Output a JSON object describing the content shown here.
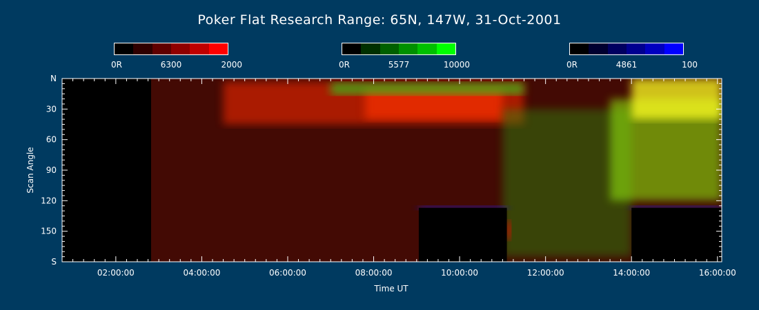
{
  "title": "Poker Flat Research Range: 65N, 147W, 31-Oct-2001",
  "colorbars": [
    {
      "channel": "6300",
      "min_label": "0R",
      "mid_label": "6300",
      "max_label": "2000",
      "colors": [
        "#000000",
        "#300000",
        "#600000",
        "#900000",
        "#c00000",
        "#ff0000"
      ]
    },
    {
      "channel": "5577",
      "min_label": "0R",
      "mid_label": "5577",
      "max_label": "10000",
      "colors": [
        "#000000",
        "#003000",
        "#006000",
        "#009000",
        "#00c000",
        "#00ff00"
      ]
    },
    {
      "channel": "4861",
      "min_label": "0R",
      "mid_label": "4861",
      "max_label": "100",
      "colors": [
        "#000000",
        "#000030",
        "#000060",
        "#000090",
        "#0000c0",
        "#0000ff"
      ]
    }
  ],
  "chart_data": {
    "type": "heatmap",
    "title": "Poker Flat Research Range: 65N, 147W, 31-Oct-2001",
    "xlabel": "Time UT",
    "ylabel": "Scan Angle",
    "x_range_hours": [
      0.75,
      16.1
    ],
    "x_ticks": [
      {
        "value": 2,
        "label": "02:00:00"
      },
      {
        "value": 4,
        "label": "04:00:00"
      },
      {
        "value": 6,
        "label": "06:00:00"
      },
      {
        "value": 8,
        "label": "08:00:00"
      },
      {
        "value": 10,
        "label": "10:00:00"
      },
      {
        "value": 12,
        "label": "12:00:00"
      },
      {
        "value": 14,
        "label": "14:00:00"
      },
      {
        "value": 16,
        "label": "16:00:00"
      }
    ],
    "y_range": [
      0,
      180
    ],
    "y_ticks": [
      {
        "value": 0,
        "label": "N"
      },
      {
        "value": 30,
        "label": "30"
      },
      {
        "value": 60,
        "label": "60"
      },
      {
        "value": 90,
        "label": "90"
      },
      {
        "value": 120,
        "label": "120"
      },
      {
        "value": 150,
        "label": "150"
      },
      {
        "value": 180,
        "label": "S"
      }
    ],
    "no_data_intervals": [
      {
        "t0": 0.75,
        "t1": 2.82,
        "angle0": 0,
        "angle1": 180
      },
      {
        "t0": 9.05,
        "t1": 11.1,
        "angle0": 127,
        "angle1": 180
      },
      {
        "t0": 14.0,
        "t1": 16.1,
        "angle0": 127,
        "angle1": 180
      }
    ],
    "emission_regions": [
      {
        "channel": "6300",
        "color": "#7a1208",
        "t0": 2.82,
        "t1": 16.1,
        "angle0": 0,
        "angle1": 180,
        "opacity": 0.55
      },
      {
        "channel": "6300",
        "color": "#ff2a00",
        "t0": 4.5,
        "t1": 11.5,
        "angle0": 3,
        "angle1": 45,
        "opacity": 0.55
      },
      {
        "channel": "6300",
        "color": "#ff3300",
        "t0": 7.8,
        "t1": 11.0,
        "angle0": 10,
        "angle1": 40,
        "opacity": 0.65
      },
      {
        "channel": "5577",
        "color": "#22dd22",
        "t0": 7.0,
        "t1": 11.5,
        "angle0": 4,
        "angle1": 16,
        "opacity": 0.6
      },
      {
        "channel": "5577",
        "color": "#2f8a10",
        "t0": 11.0,
        "t1": 14.0,
        "angle0": 30,
        "angle1": 175,
        "opacity": 0.45
      },
      {
        "channel": "5577",
        "color": "#8ee010",
        "t0": 13.5,
        "t1": 16.1,
        "angle0": 20,
        "angle1": 120,
        "opacity": 0.6
      },
      {
        "channel": "mixed",
        "color": "#ffff20",
        "t0": 14.0,
        "t1": 16.1,
        "angle0": 0,
        "angle1": 40,
        "opacity": 0.75
      },
      {
        "channel": "6300",
        "color": "#ff1100",
        "t0": 11.1,
        "t1": 11.2,
        "angle0": 140,
        "angle1": 158,
        "opacity": 0.9
      },
      {
        "channel": "4861",
        "color": "#2222ff",
        "t0": 9.05,
        "t1": 11.1,
        "angle0": 125,
        "angle1": 129,
        "opacity": 0.7
      },
      {
        "channel": "4861",
        "color": "#2222ff",
        "t0": 14.0,
        "t1": 16.1,
        "angle0": 125,
        "angle1": 129,
        "opacity": 0.7
      }
    ]
  }
}
